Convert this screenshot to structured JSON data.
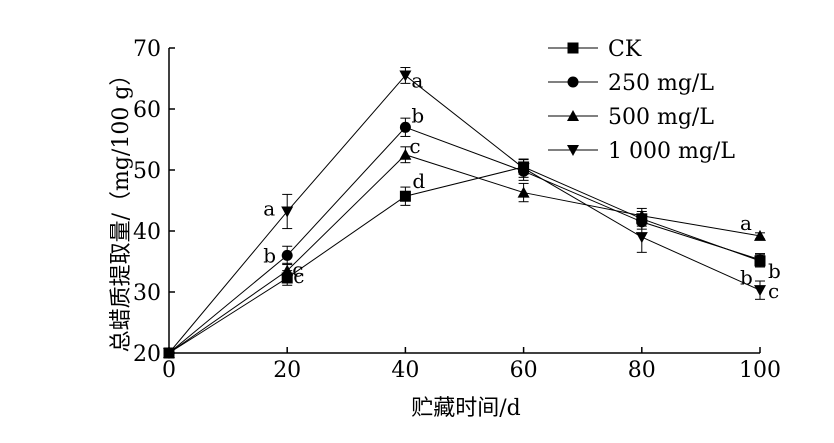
{
  "chart_data": {
    "type": "line",
    "xlabel": "贮藏时间/d",
    "ylabel": "总蜡质提取量/（mg/100 g）",
    "x": [
      0,
      20,
      40,
      60,
      80,
      100
    ],
    "xlim": [
      0,
      100
    ],
    "ylim": [
      20,
      70
    ],
    "xticks": [
      "0",
      "20",
      "40",
      "60",
      "80",
      "100"
    ],
    "yticks": [
      "20",
      "30",
      "40",
      "50",
      "60",
      "70"
    ],
    "legend_position": "top-right",
    "series": [
      {
        "name": "CK",
        "marker": "square",
        "values": [
          20,
          32.3,
          45.7,
          50.5,
          42,
          35.1
        ],
        "errors": [
          0,
          1.2,
          1.5,
          1.2,
          1.2,
          1.0
        ],
        "labels": [
          "",
          "c",
          "d",
          "",
          "",
          "b"
        ]
      },
      {
        "name": "250 mg/L",
        "marker": "circle",
        "values": [
          20,
          36,
          57,
          49.8,
          41.5,
          35.3
        ],
        "errors": [
          0,
          1.5,
          1.5,
          1.5,
          1.2,
          1.0
        ],
        "labels": [
          "",
          "b",
          "b",
          "",
          "",
          "b"
        ]
      },
      {
        "name": "500 mg/L",
        "marker": "triangle-up",
        "values": [
          20,
          33.5,
          52.5,
          46.3,
          42.5,
          39.2
        ],
        "errors": [
          0,
          1.2,
          1.3,
          1.5,
          1.2,
          0.5
        ],
        "labels": [
          "",
          "c",
          "c",
          "",
          "",
          "a"
        ]
      },
      {
        "name": "1 000 mg/L",
        "marker": "triangle-down",
        "values": [
          20,
          43.2,
          65.5,
          50.3,
          39,
          30.3
        ],
        "errors": [
          0,
          2.8,
          1.3,
          1.5,
          2.5,
          1.5
        ],
        "labels": [
          "",
          "a",
          "a",
          "",
          "",
          "c"
        ]
      }
    ]
  }
}
